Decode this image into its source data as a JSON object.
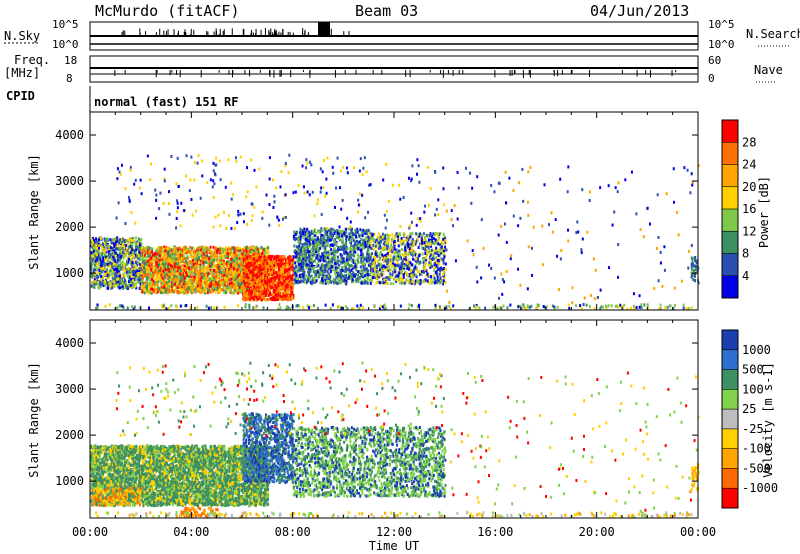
{
  "header": {
    "site": "McMurdo (fitACF)",
    "beam": "Beam 03",
    "date": "04/Jun/2013"
  },
  "status_panels": {
    "nsky_label": "N.Sky",
    "nsky_ticks": [
      "10^5",
      "10^0"
    ],
    "nsearch_label": "N.Search",
    "nsearch_ticks": [
      "10^5",
      "10^0"
    ],
    "freq_label": [
      "Freq.",
      "[MHz]"
    ],
    "freq_ticks": [
      "18",
      "8"
    ],
    "nave_label": "Nave",
    "nave_ticks": [
      "60",
      "0"
    ],
    "cpid_label": "CPID",
    "cpid_text": "normal (fast) 151 RF"
  },
  "chart_data": [
    {
      "type": "heatmap",
      "name": "power",
      "ylabel": "Slant Range [km]",
      "xlabel": "Time UT",
      "xlim": [
        0,
        24
      ],
      "ylim": [
        200,
        4500
      ],
      "x_tick_labels": [
        "00:00",
        "04:00",
        "08:00",
        "12:00",
        "16:00",
        "20:00",
        "00:00"
      ],
      "y_ticks": [
        1000,
        2000,
        3000,
        4000
      ],
      "y_tick_labels": [
        "1000",
        "2000",
        "3000",
        "4000"
      ],
      "colorbar": {
        "label": "Power [dB]",
        "tick_labels": [
          "28",
          "24",
          "20",
          "16",
          "12",
          "8",
          "4"
        ],
        "colors": [
          "#ff0000",
          "#ff7000",
          "#ffa500",
          "#ffd000",
          "#7fc94a",
          "#3e8f62",
          "#2b4fb0",
          "#0000e6"
        ]
      }
    },
    {
      "type": "heatmap",
      "name": "velocity",
      "ylabel": "Slant Range [km]",
      "xlabel": "Time UT",
      "xlim": [
        0,
        24
      ],
      "ylim": [
        200,
        4500
      ],
      "x_tick_labels": [
        "00:00",
        "04:00",
        "08:00",
        "12:00",
        "16:00",
        "20:00",
        "00:00"
      ],
      "y_ticks": [
        1000,
        2000,
        3000,
        4000
      ],
      "y_tick_labels": [
        "1000",
        "2000",
        "3000",
        "4000"
      ],
      "colorbar": {
        "label": "Velocity [m s-1]",
        "tick_labels": [
          "1000",
          "500",
          "100",
          "25",
          "-25",
          "-100",
          "-500",
          "-1000"
        ],
        "colors": [
          "#1a3fb0",
          "#2e6fd0",
          "#3e8f62",
          "#7fd24a",
          "#bdbdbd",
          "#ffd000",
          "#ffa500",
          "#ff6a00",
          "#ff0000"
        ]
      }
    }
  ]
}
